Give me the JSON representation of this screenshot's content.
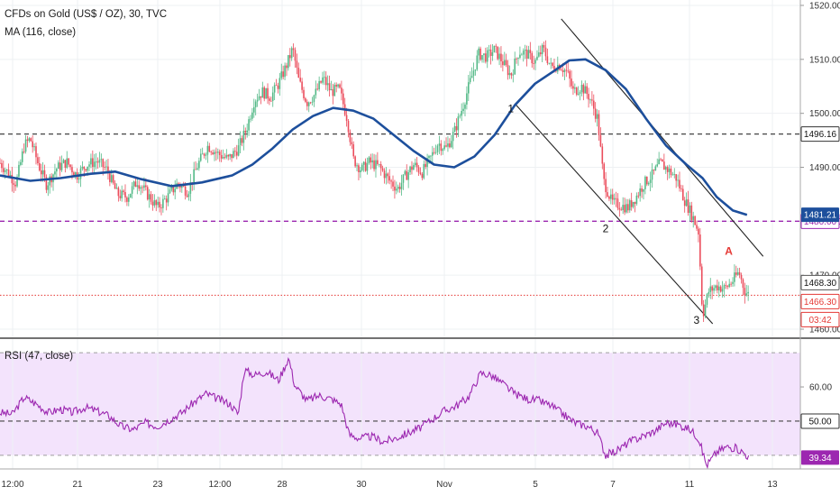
{
  "legend": {
    "title": "CFDs on Gold (US$ / OZ), 30, TVC",
    "ma": "MA (116, close)",
    "rsi": "RSI (47, close)"
  },
  "colors": {
    "up": "#53b987",
    "down": "#eb4d5c",
    "ma": "#1d4f9c",
    "rsi": "#9c27b0",
    "rsi_band": "#f3e3fc",
    "level_purple": "#9c27b0",
    "level_red": "#e53935",
    "channel": "#222222"
  },
  "chart_data": [
    {
      "type": "candlestick",
      "title": "CFDs on Gold (US$ / OZ), 30, TVC",
      "ylim": [
        1458.5,
        1521.0
      ],
      "y_ticks": [
        "1520.00",
        "1510.00",
        "1500.00",
        "1490.00",
        "1480.00",
        "1470.00",
        "1460.00"
      ],
      "x_ticks": [
        "12:00",
        "21",
        "23",
        "12:00",
        "28",
        "30",
        "Nov",
        "5",
        "7",
        "11",
        "13"
      ],
      "price_path": [
        [
          0,
          1490.8
        ],
        [
          0.4,
          1489.0
        ],
        [
          0.8,
          1487.0
        ],
        [
          1.2,
          1494.0
        ],
        [
          1.5,
          1495.3
        ],
        [
          1.9,
          1490.5
        ],
        [
          2.3,
          1486.8
        ],
        [
          2.8,
          1489.8
        ],
        [
          3.3,
          1491.0
        ],
        [
          3.8,
          1488.5
        ],
        [
          4.3,
          1490.5
        ],
        [
          4.8,
          1491.2
        ],
        [
          5.3,
          1489.5
        ],
        [
          5.8,
          1485.0
        ],
        [
          6.3,
          1484.5
        ],
        [
          6.8,
          1487.5
        ],
        [
          7.3,
          1485.0
        ],
        [
          7.8,
          1482.5
        ],
        [
          8.3,
          1484.5
        ],
        [
          8.8,
          1487.0
        ],
        [
          9.3,
          1485.5
        ],
        [
          9.8,
          1490.5
        ],
        [
          10.3,
          1494.0
        ],
        [
          10.8,
          1492.5
        ],
        [
          11.3,
          1491.5
        ],
        [
          11.8,
          1493.5
        ],
        [
          12.2,
          1497.0
        ],
        [
          12.6,
          1502.5
        ],
        [
          13.0,
          1504.0
        ],
        [
          13.4,
          1503.0
        ],
        [
          13.8,
          1505.5
        ],
        [
          14.2,
          1509.0
        ],
        [
          14.5,
          1512.0
        ],
        [
          14.8,
          1506.0
        ],
        [
          15.2,
          1502.0
        ],
        [
          15.6,
          1503.5
        ],
        [
          16.0,
          1506.5
        ],
        [
          16.4,
          1504.0
        ],
        [
          16.8,
          1504.5
        ],
        [
          17.2,
          1499.0
        ],
        [
          17.5,
          1491.5
        ],
        [
          17.9,
          1489.5
        ],
        [
          18.3,
          1491.0
        ],
        [
          18.8,
          1490.0
        ],
        [
          19.3,
          1487.5
        ],
        [
          19.7,
          1486.0
        ],
        [
          20.1,
          1488.5
        ],
        [
          20.5,
          1490.5
        ],
        [
          20.9,
          1489.0
        ],
        [
          21.3,
          1491.5
        ],
        [
          21.7,
          1494.5
        ],
        [
          22.1,
          1493.5
        ],
        [
          22.5,
          1496.5
        ],
        [
          22.9,
          1501.0
        ],
        [
          23.3,
          1506.0
        ],
        [
          23.7,
          1511.0
        ],
        [
          24.1,
          1510.5
        ],
        [
          24.5,
          1511.8
        ],
        [
          24.9,
          1509.5
        ],
        [
          25.3,
          1507.0
        ],
        [
          25.7,
          1511.5
        ],
        [
          26.1,
          1511.0
        ],
        [
          26.5,
          1509.5
        ],
        [
          26.9,
          1512.0
        ],
        [
          27.3,
          1508.5
        ],
        [
          27.7,
          1509.0
        ],
        [
          28.1,
          1507.5
        ],
        [
          28.4,
          1504.0
        ],
        [
          28.8,
          1505.0
        ],
        [
          29.2,
          1503.0
        ],
        [
          29.6,
          1499.0
        ],
        [
          29.9,
          1487.5
        ],
        [
          30.3,
          1483.5
        ],
        [
          30.7,
          1483.0
        ],
        [
          31.1,
          1482.5
        ],
        [
          31.5,
          1484.5
        ],
        [
          31.9,
          1487.0
        ],
        [
          32.3,
          1488.5
        ],
        [
          32.7,
          1490.8
        ],
        [
          33.1,
          1489.5
        ],
        [
          33.5,
          1488.0
        ],
        [
          33.9,
          1484.0
        ],
        [
          34.3,
          1481.0
        ],
        [
          34.6,
          1478.0
        ],
        [
          34.8,
          1462.5
        ],
        [
          35.1,
          1467.0
        ],
        [
          35.5,
          1468.0
        ],
        [
          35.9,
          1467.5
        ],
        [
          36.3,
          1469.0
        ],
        [
          36.6,
          1470.6
        ],
        [
          36.9,
          1467.0
        ],
        [
          37.1,
          1466.3
        ]
      ],
      "ma": [
        [
          0,
          1488.5
        ],
        [
          1.5,
          1487.5
        ],
        [
          3.0,
          1488.0
        ],
        [
          4.5,
          1488.8
        ],
        [
          5.7,
          1489.2
        ],
        [
          7.0,
          1487.8
        ],
        [
          8.5,
          1486.5
        ],
        [
          10.0,
          1487.2
        ],
        [
          11.5,
          1488.5
        ],
        [
          12.5,
          1490.5
        ],
        [
          13.5,
          1493.5
        ],
        [
          14.5,
          1497.0
        ],
        [
          15.5,
          1499.5
        ],
        [
          16.5,
          1501.0
        ],
        [
          17.5,
          1500.5
        ],
        [
          18.5,
          1499.0
        ],
        [
          19.5,
          1496.0
        ],
        [
          20.5,
          1493.0
        ],
        [
          21.5,
          1490.5
        ],
        [
          22.5,
          1490.0
        ],
        [
          23.5,
          1492.0
        ],
        [
          24.5,
          1496.0
        ],
        [
          25.5,
          1501.5
        ],
        [
          26.5,
          1505.5
        ],
        [
          27.5,
          1508.0
        ],
        [
          28.2,
          1509.8
        ],
        [
          29.0,
          1510.0
        ],
        [
          30.0,
          1508.0
        ],
        [
          31.0,
          1504.5
        ],
        [
          32.0,
          1499.0
        ],
        [
          33.0,
          1494.0
        ],
        [
          34.0,
          1490.5
        ],
        [
          34.8,
          1488.0
        ],
        [
          35.5,
          1484.5
        ],
        [
          36.3,
          1482.0
        ],
        [
          37.0,
          1481.2
        ]
      ],
      "levels": [
        {
          "value": 1496.16,
          "label": "1496.16",
          "style": "dashed-black"
        },
        {
          "value": 1480.0,
          "label": "1480.00",
          "style": "dashed-purple"
        },
        {
          "value": 1466.3,
          "label": "1466.30",
          "style": "dotted-red"
        }
      ],
      "price_tags": [
        {
          "value": 1481.21,
          "label": "1481.21"
        },
        {
          "value": 1468.3,
          "label": "1468.30"
        },
        {
          "value": 1466.3,
          "label": "1466.30"
        },
        {
          "label": "03:42"
        }
      ],
      "annotations": [
        {
          "text": "1",
          "x": 25.3,
          "y": 1500.2
        },
        {
          "text": "2",
          "x": 30.0,
          "y": 1478.0
        },
        {
          "text": "3",
          "x": 34.5,
          "y": 1461.0
        },
        {
          "text": "A",
          "x": 36.1,
          "y": 1473.8
        }
      ],
      "channel": {
        "upper": [
          [
            27.8,
            1517.5
          ],
          [
            37.8,
            1473.5
          ]
        ],
        "lower": [
          [
            25.5,
            1501.8
          ],
          [
            35.3,
            1461.0
          ]
        ]
      }
    },
    {
      "type": "line",
      "title": "RSI (47, close)",
      "ylim": [
        36.0,
        74.0
      ],
      "y_ticks": [
        "60.00"
      ],
      "band": [
        40.0,
        70.0
      ],
      "midline": 50.0,
      "last_value": 39.34,
      "last_label": "39.34",
      "midline_label": "50.00",
      "series": [
        [
          0,
          52.5
        ],
        [
          0.6,
          52.0
        ],
        [
          1.2,
          57.0
        ],
        [
          1.8,
          55.0
        ],
        [
          2.4,
          52.5
        ],
        [
          3.0,
          53.5
        ],
        [
          3.6,
          52.5
        ],
        [
          4.2,
          54.0
        ],
        [
          4.8,
          53.0
        ],
        [
          5.4,
          51.5
        ],
        [
          6.0,
          48.5
        ],
        [
          6.6,
          47.5
        ],
        [
          7.2,
          49.5
        ],
        [
          7.8,
          48.5
        ],
        [
          8.4,
          50.5
        ],
        [
          9.0,
          52.5
        ],
        [
          9.6,
          55.5
        ],
        [
          10.2,
          58.0
        ],
        [
          10.8,
          56.5
        ],
        [
          11.4,
          55.0
        ],
        [
          11.8,
          52.0
        ],
        [
          12.1,
          65.0
        ],
        [
          12.6,
          63.5
        ],
        [
          13.2,
          64.5
        ],
        [
          13.8,
          62.0
        ],
        [
          14.3,
          68.5
        ],
        [
          14.6,
          60.5
        ],
        [
          15.2,
          56.0
        ],
        [
          15.8,
          57.5
        ],
        [
          16.4,
          56.5
        ],
        [
          16.9,
          55.0
        ],
        [
          17.3,
          46.0
        ],
        [
          17.8,
          45.0
        ],
        [
          18.4,
          45.5
        ],
        [
          19.0,
          44.0
        ],
        [
          19.6,
          45.0
        ],
        [
          20.2,
          46.5
        ],
        [
          20.8,
          48.0
        ],
        [
          21.4,
          50.5
        ],
        [
          22.0,
          53.0
        ],
        [
          22.6,
          54.5
        ],
        [
          23.2,
          57.0
        ],
        [
          23.8,
          64.0
        ],
        [
          24.3,
          63.5
        ],
        [
          24.9,
          61.0
        ],
        [
          25.5,
          58.0
        ],
        [
          26.1,
          56.5
        ],
        [
          26.7,
          56.0
        ],
        [
          27.3,
          54.5
        ],
        [
          27.9,
          52.0
        ],
        [
          28.5,
          49.5
        ],
        [
          29.1,
          48.5
        ],
        [
          29.6,
          46.5
        ],
        [
          30.0,
          40.0
        ],
        [
          30.6,
          41.5
        ],
        [
          31.2,
          44.0
        ],
        [
          31.8,
          45.5
        ],
        [
          32.4,
          47.0
        ],
        [
          33.0,
          49.5
        ],
        [
          33.6,
          49.0
        ],
        [
          34.2,
          47.5
        ],
        [
          34.6,
          45.0
        ],
        [
          35.0,
          37.0
        ],
        [
          35.5,
          41.0
        ],
        [
          36.0,
          42.5
        ],
        [
          36.5,
          42.0
        ],
        [
          36.9,
          40.5
        ],
        [
          37.1,
          39.3
        ]
      ]
    }
  ]
}
